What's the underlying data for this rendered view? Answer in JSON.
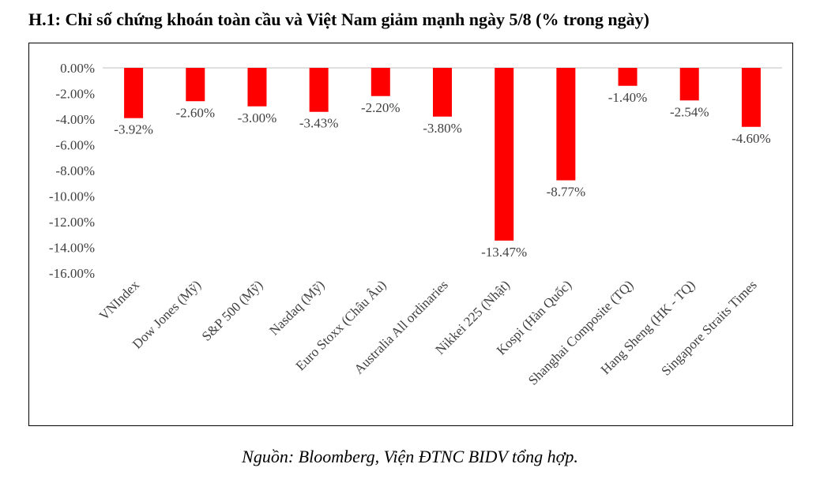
{
  "title": "H.1: Chỉ số chứng khoán toàn cầu và Việt Nam giảm mạnh ngày 5/8 (% trong ngày)",
  "source": "Nguồn: Bloomberg, Viện ĐTNC BIDV tổng hợp.",
  "colors": {
    "bar": "#ff0000",
    "axis": "#bfbfbf",
    "text": "#404040"
  },
  "chart_data": {
    "type": "bar",
    "categories": [
      "VNIndex",
      "Dow Jones (Mỹ)",
      "S&P 500 (Mỹ)",
      "Nasdaq (Mỹ)",
      "Euro Stoxx (Châu Âu)",
      "Australia All ordinaries",
      "Nikkei 225 (Nhật)",
      "Kospi (Hàn Quốc)",
      "Shanghai Composite (TQ)",
      "Hang Sheng (HK - TQ)",
      "Singapore Straits Times"
    ],
    "values": [
      -3.92,
      -2.6,
      -3.0,
      -3.43,
      -2.2,
      -3.8,
      -13.47,
      -8.77,
      -1.4,
      -2.54,
      -4.6
    ],
    "data_labels": [
      "-3.92%",
      "-2.60%",
      "-3.00%",
      "-3.43%",
      "-2.20%",
      "-3.80%",
      "-13.47%",
      "-8.77%",
      "-1.40%",
      "-2.54%",
      "-4.60%"
    ],
    "yticks": [
      0,
      -2,
      -4,
      -6,
      -8,
      -10,
      -12,
      -14,
      -16
    ],
    "ytick_labels": [
      "0.00%",
      "-2.00%",
      "-4.00%",
      "-6.00%",
      "-8.00%",
      "-10.00%",
      "-12.00%",
      "-14.00%",
      "-16.00%"
    ],
    "ylim": [
      -16,
      0
    ],
    "xlabel": "",
    "ylabel": "",
    "grid": false,
    "legend": "none"
  }
}
